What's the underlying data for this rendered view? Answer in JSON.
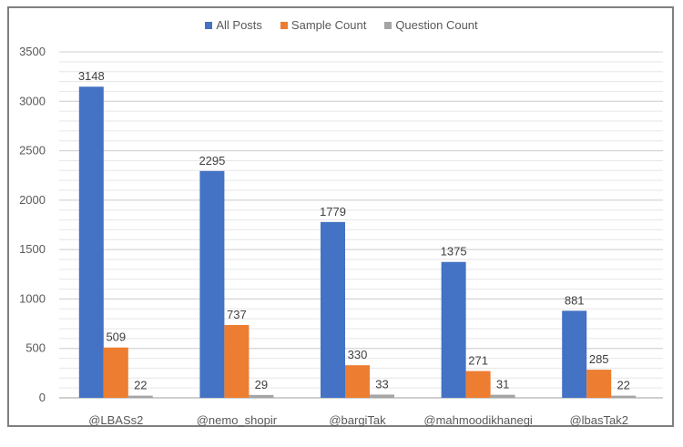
{
  "chart_data": {
    "type": "bar",
    "title": "",
    "xlabel": "",
    "ylabel": "",
    "categories": [
      "@LBASs2",
      "@nemo_shopir",
      "@bargiTak",
      "@mahmoodikhanegi",
      "@lbasTak2"
    ],
    "series": [
      {
        "name": "All Posts",
        "color": "#4472C4",
        "values": [
          3148,
          2295,
          1779,
          1375,
          881
        ]
      },
      {
        "name": "Sample Count",
        "color": "#ED7D31",
        "values": [
          509,
          737,
          330,
          271,
          285
        ]
      },
      {
        "name": "Question Count",
        "color": "#A5A5A5",
        "values": [
          22,
          29,
          33,
          31,
          22
        ]
      }
    ],
    "ylim": [
      0,
      3500
    ],
    "yticks": [
      0,
      500,
      1000,
      1500,
      2000,
      2500,
      3000,
      3500
    ],
    "grid": true,
    "minor_grid_step": 100,
    "legend_position": "top",
    "data_labels": true
  },
  "legend": {
    "items": [
      {
        "label": "All Posts",
        "color": "#4472C4"
      },
      {
        "label": "Sample Count",
        "color": "#ED7D31"
      },
      {
        "label": "Question Count",
        "color": "#A5A5A5"
      }
    ]
  }
}
